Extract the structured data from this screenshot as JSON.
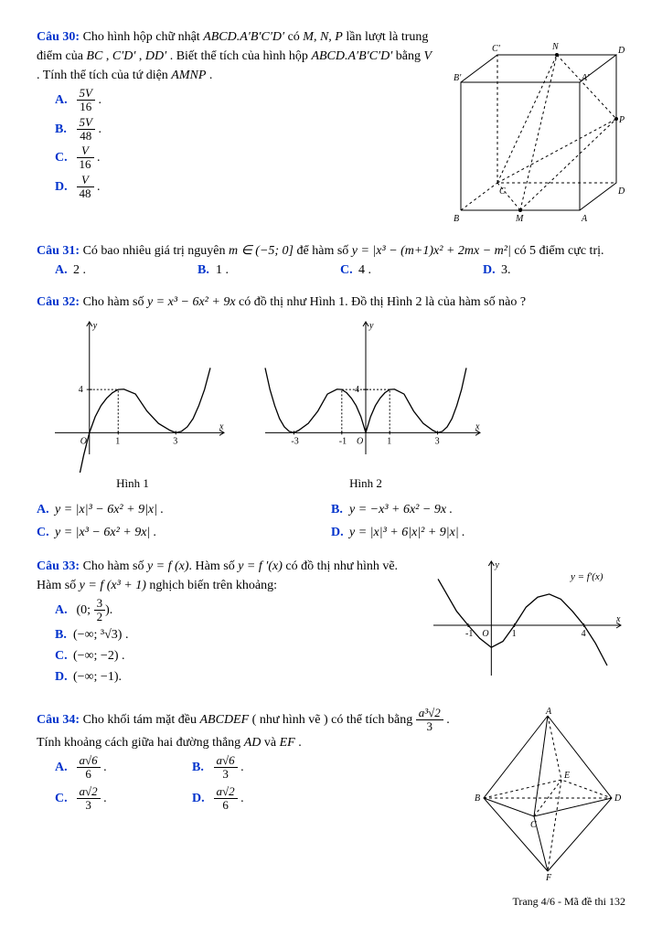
{
  "q30": {
    "label": "Câu 30:",
    "text_1": "Cho hình hộp chữ nhật ",
    "math_1": "ABCD.A′B′C′D′",
    "text_2": " có ",
    "math_2": "M, N, P",
    "text_3": " lần lượt là trung điểm của ",
    "math_3": "BC",
    "text_4": " , ",
    "math_4": "C′D′",
    "text_5": " , ",
    "math_5": "DD′",
    "text_6": " . Biết thể tích của hình hộp ",
    "math_6": "ABCD.A′B′C′D′",
    "text_7": " bằng ",
    "math_7": "V",
    "text_8": " . Tính thể tích của tứ diện ",
    "math_8": "AMNP",
    "text_9": " .",
    "A_num": "5V",
    "A_den": "16",
    "B_num": "5V",
    "B_den": "48",
    "C_num": "V",
    "C_den": "16",
    "D_num": "V",
    "D_den": "48",
    "A_label": "A.",
    "B_label": "B.",
    "C_label": "C.",
    "D_label": "D.",
    "box": {
      "stroke": "#000",
      "fill": "none",
      "labels": {
        "A": "A'",
        "B": "B'",
        "C": "C'",
        "Dp": "D'",
        "Al": "A",
        "Bl": "B",
        "Cl": "C",
        "Dl": "D",
        "M": "M",
        "N": "N",
        "P": "P"
      }
    }
  },
  "q31": {
    "label": "Câu 31:",
    "text_1": "Có bao nhiêu giá trị nguyên ",
    "math_1": "m ∈ (−5; 0]",
    "text_2": " để hàm số ",
    "math_2": "y = |x³ − (m+1)x² + 2mx − m²|",
    "text_3": "  có 5 điểm cực trị.",
    "A": "2 .",
    "B": "1 .",
    "C": "4 .",
    "D": "3.",
    "A_label": "A.",
    "B_label": "B.",
    "C_label": "C.",
    "D_label": "D."
  },
  "q32": {
    "label": "Câu 32:",
    "text_1": "Cho hàm số ",
    "math_1": "y = x³ − 6x² + 9x",
    "text_2": " có đồ thị như Hình ",
    "math_2": "1",
    "text_3": ". Đồ thị Hình ",
    "math_3": "2",
    "text_4": " là của hàm số nào ?",
    "cap1": "Hình 1",
    "cap2": "Hình 2",
    "A": "y = |x|³ − 6x² + 9|x| .",
    "B": "y = −x³ + 6x² − 9x .",
    "C": "y = |x³ − 6x² + 9x| .",
    "D": "y = |x|³ + 6|x|² + 9|x| .",
    "A_label": "A.",
    "B_label": "B.",
    "C_label": "C.",
    "D_label": "D.",
    "graph1": {
      "type": "line",
      "stroke": "#000",
      "axis_color": "#000",
      "xticks": [
        1,
        3
      ],
      "ytick": 4,
      "xlim": [
        -1.2,
        4.2
      ],
      "ylim": [
        -2,
        9
      ],
      "points": [
        [
          -0.6,
          -6.8
        ],
        [
          -0.4,
          -4.6
        ],
        [
          -0.2,
          -2.1
        ],
        [
          0,
          0
        ],
        [
          0.2,
          1.47
        ],
        [
          0.4,
          2.5
        ],
        [
          0.6,
          3.2
        ],
        [
          0.8,
          3.7
        ],
        [
          1,
          4
        ],
        [
          1.2,
          4.03
        ],
        [
          1.6,
          3.58
        ],
        [
          2,
          2
        ],
        [
          2.4,
          0.86
        ],
        [
          2.8,
          0.22
        ],
        [
          3,
          0
        ],
        [
          3.2,
          0.13
        ],
        [
          3.4,
          0.54
        ],
        [
          3.6,
          1.3
        ],
        [
          3.8,
          2.5
        ],
        [
          4,
          4
        ],
        [
          4.2,
          6
        ]
      ]
    },
    "graph2": {
      "type": "line",
      "stroke": "#000",
      "axis_color": "#000",
      "xticks": [
        -3,
        -1,
        1,
        3
      ],
      "ytick": 4,
      "xlim": [
        -4.2,
        4.2
      ],
      "ylim": [
        -2,
        9
      ],
      "points_right": [
        [
          0,
          0
        ],
        [
          0.2,
          1.47
        ],
        [
          0.4,
          2.5
        ],
        [
          0.6,
          3.2
        ],
        [
          0.8,
          3.7
        ],
        [
          1,
          4
        ],
        [
          1.2,
          4.03
        ],
        [
          1.6,
          3.58
        ],
        [
          2,
          2
        ],
        [
          2.4,
          0.86
        ],
        [
          2.8,
          0.22
        ],
        [
          3,
          0
        ],
        [
          3.2,
          0.13
        ],
        [
          3.4,
          0.54
        ],
        [
          3.6,
          1.3
        ],
        [
          3.8,
          2.5
        ],
        [
          4,
          4
        ],
        [
          4.2,
          6
        ]
      ]
    }
  },
  "q33": {
    "label": "Câu 33:",
    "text_1": "Cho hàm số ",
    "math_1": "y = f (x)",
    "text_2": ". Hàm số ",
    "math_2": "y = f ′(x)",
    "text_3": " có đồ thị như hình vẽ. Hàm số ",
    "math_3": "y = f (x³ + 1)",
    "text_4": " nghịch biến trên khoảng:",
    "A_pre": "(0; ",
    "A_num": "3",
    "A_den": "2",
    "A_post": ").",
    "B": "(−∞; ³√3) .",
    "C": "(−∞; −2) .",
    "D": "(−∞; −1).",
    "A_label": "A.",
    "B_label": "B.",
    "C_label": "C.",
    "D_label": "D.",
    "graph": {
      "type": "line",
      "stroke": "#000",
      "axis_color": "#000",
      "xticks": [
        -1,
        1,
        4
      ],
      "label": "y = f′(x)",
      "xlim": [
        -2.5,
        5
      ],
      "ylim": [
        -2.5,
        2.5
      ],
      "points": [
        [
          -2.3,
          2.3
        ],
        [
          -2,
          1.7
        ],
        [
          -1.5,
          0.7
        ],
        [
          -1,
          0
        ],
        [
          -0.5,
          -0.65
        ],
        [
          0,
          -1.1
        ],
        [
          0.5,
          -0.8
        ],
        [
          1,
          0
        ],
        [
          1.5,
          0.9
        ],
        [
          2,
          1.4
        ],
        [
          2.5,
          1.55
        ],
        [
          3,
          1.3
        ],
        [
          3.5,
          0.7
        ],
        [
          4,
          0
        ],
        [
          4.5,
          -0.9
        ],
        [
          5,
          -2
        ]
      ]
    }
  },
  "q34": {
    "label": "Câu 34:",
    "text_1": "Cho khối tám mặt đều ",
    "math_1": "ABCDEF",
    "text_2": " ( như hình vẽ ) có thể tích bằng ",
    "frac_num": "a³√2",
    "frac_den": "3",
    "text_3": " . Tính khoảng cách giữa hai đường thẳng ",
    "math_2": "AD",
    "text_4": " và ",
    "math_3": "EF",
    "text_5": " .",
    "A_num": "a√6",
    "A_den": "6",
    "B_num": "a√6",
    "B_den": "3",
    "C_num": "a√2",
    "C_den": "3",
    "D_num": "a√2",
    "D_den": "6",
    "A_label": "A.",
    "B_label": "B.",
    "C_label": "C.",
    "D_label": "D.",
    "labels": {
      "A": "A",
      "B": "B",
      "C": "C",
      "D": "D",
      "E": "E",
      "F": "F"
    }
  },
  "footer": "Trang 4/6 - Mã đề thi 132"
}
